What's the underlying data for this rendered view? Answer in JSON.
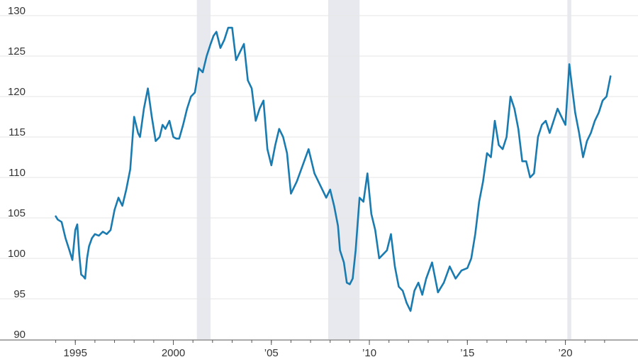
{
  "chart_data": {
    "type": "line",
    "title": "",
    "xlabel": "",
    "ylabel": "",
    "ylim": [
      90,
      130
    ],
    "xlim": [
      1993.4,
      2022.8
    ],
    "grid": true,
    "legend": "none",
    "y_ticks": [
      {
        "value": 90,
        "label": "90"
      },
      {
        "value": 95,
        "label": "95"
      },
      {
        "value": 100,
        "label": "100"
      },
      {
        "value": 105,
        "label": "105"
      },
      {
        "value": 110,
        "label": "110"
      },
      {
        "value": 115,
        "label": "115"
      },
      {
        "value": 120,
        "label": "120"
      },
      {
        "value": 125,
        "label": "125"
      },
      {
        "value": 130,
        "label": "130"
      }
    ],
    "x_ticks": [
      {
        "value": 1995,
        "label": "1995"
      },
      {
        "value": 2000,
        "label": "2000"
      },
      {
        "value": 2005,
        "label": "’05"
      },
      {
        "value": 2010,
        "label": "’10"
      },
      {
        "value": 2015,
        "label": "’15"
      },
      {
        "value": 2020,
        "label": "’20"
      }
    ],
    "shaded_periods": [
      {
        "start": 2001.2,
        "end": 2001.9
      },
      {
        "start": 2007.9,
        "end": 2009.5
      },
      {
        "start": 2020.1,
        "end": 2020.3
      }
    ],
    "colors": {
      "line": "#1a7bb0",
      "shade": "#e8e9ee",
      "grid": "#e6e6e6",
      "axis": "#555555"
    },
    "series": [
      {
        "x": [
          1994.0,
          1994.1,
          1994.3,
          1994.5,
          1994.7,
          1994.85,
          1995.0,
          1995.1,
          1995.2,
          1995.3,
          1995.4,
          1995.5,
          1995.6,
          1995.7,
          1995.85,
          1996.0,
          1996.2,
          1996.4,
          1996.6,
          1996.8,
          1997.0,
          1997.2,
          1997.4,
          1997.6,
          1997.8,
          1998.0,
          1998.2,
          1998.3,
          1998.5,
          1998.7,
          1998.9,
          1999.1,
          1999.3,
          1999.45,
          1999.6,
          1999.8,
          2000.0,
          2000.15,
          2000.3,
          2000.5,
          2000.7,
          2000.9,
          2001.1,
          2001.3,
          2001.5,
          2001.7,
          2001.9,
          2002.05,
          2002.2,
          2002.4,
          2002.6,
          2002.8,
          2003.0,
          2003.2,
          2003.4,
          2003.6,
          2003.8,
          2004.0,
          2004.2,
          2004.4,
          2004.6,
          2004.8,
          2005.0,
          2005.2,
          2005.4,
          2005.6,
          2005.8,
          2006.0,
          2006.3,
          2006.6,
          2006.9,
          2007.2,
          2007.5,
          2007.8,
          2008.0,
          2008.2,
          2008.4,
          2008.5,
          2008.7,
          2008.85,
          2009.0,
          2009.15,
          2009.3,
          2009.5,
          2009.7,
          2009.9,
          2010.1,
          2010.3,
          2010.5,
          2010.7,
          2010.9,
          2011.1,
          2011.3,
          2011.5,
          2011.7,
          2011.9,
          2012.1,
          2012.3,
          2012.5,
          2012.7,
          2012.9,
          2013.2,
          2013.5,
          2013.8,
          2014.1,
          2014.4,
          2014.7,
          2015.0,
          2015.2,
          2015.4,
          2015.6,
          2015.8,
          2016.0,
          2016.2,
          2016.4,
          2016.6,
          2016.8,
          2017.0,
          2017.2,
          2017.4,
          2017.6,
          2017.8,
          2018.0,
          2018.2,
          2018.4,
          2018.6,
          2018.8,
          2019.0,
          2019.2,
          2019.4,
          2019.6,
          2019.8,
          2020.0,
          2020.2,
          2020.35,
          2020.5,
          2020.7,
          2020.9,
          2021.1,
          2021.3,
          2021.5,
          2021.7,
          2021.9,
          2022.1,
          2022.3
        ],
        "values": [
          105.2,
          104.8,
          104.5,
          102.5,
          101,
          99.8,
          103.5,
          104.2,
          100.5,
          98,
          97.8,
          97.5,
          100,
          101.5,
          102.5,
          103,
          102.8,
          103.3,
          103,
          103.5,
          106,
          107.5,
          106.5,
          108.5,
          111,
          117.5,
          115.5,
          115,
          118.5,
          121,
          117.5,
          114.5,
          115,
          116.5,
          116,
          117,
          115,
          114.8,
          114.8,
          116.5,
          118.5,
          120,
          120.5,
          123.5,
          123,
          125,
          126.5,
          127.5,
          128,
          126,
          127,
          128.5,
          128.5,
          124.5,
          125.5,
          126.5,
          122,
          121,
          117,
          118.5,
          119.5,
          113.5,
          111.5,
          114,
          116,
          115,
          113,
          108,
          109.5,
          111.5,
          113.5,
          110.5,
          109,
          107.5,
          108.5,
          106.5,
          104,
          101,
          99.5,
          97,
          96.8,
          97.5,
          101,
          107.5,
          107,
          110.5,
          105.5,
          103.5,
          100,
          100.5,
          101,
          103,
          99,
          96.5,
          96,
          94.5,
          93.5,
          96,
          97,
          95.5,
          97.5,
          99.5,
          95.8,
          97,
          99,
          97.5,
          98.5,
          98.8,
          100,
          103,
          107,
          109.5,
          113,
          112.5,
          117,
          114,
          113.5,
          115,
          120,
          118.5,
          116,
          112,
          112,
          110,
          110.5,
          115,
          116.5,
          117,
          115.5,
          117,
          118.5,
          117.5,
          116.5,
          124,
          121,
          118,
          115.5,
          112.5,
          114.5,
          115.5,
          117,
          118,
          119.5,
          120,
          122.5
        ]
      }
    ]
  }
}
